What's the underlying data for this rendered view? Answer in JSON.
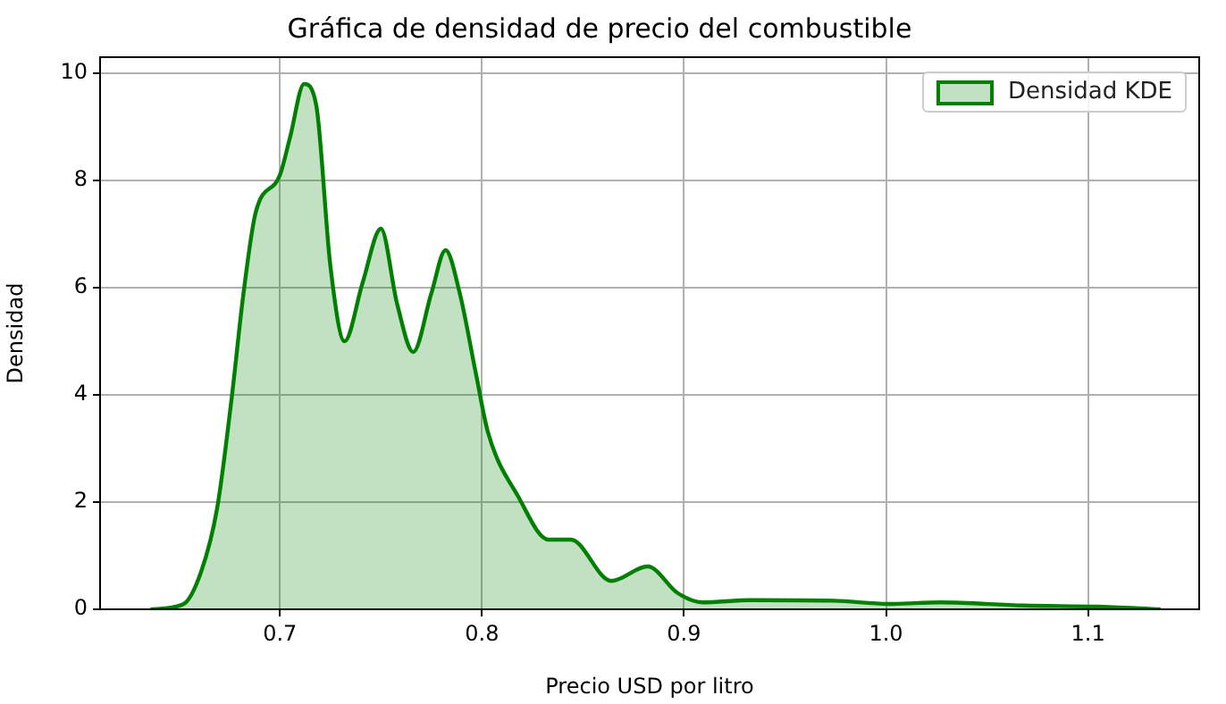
{
  "chart_data": {
    "type": "area",
    "title": "Gráfica de densidad de precio del combustible",
    "xlabel": "Precio USD por litro",
    "ylabel": "Densidad",
    "xlim": [
      0.611,
      1.155
    ],
    "xticks": [
      0.7,
      0.8,
      0.9,
      {
        "value": 1.0,
        "label": "1.0"
      },
      1.1
    ],
    "ylim": [
      0,
      10.3
    ],
    "yticks": [
      0,
      2,
      4,
      6,
      8,
      10
    ],
    "grid": true,
    "legend": "top right",
    "marker": "none",
    "line_style": "solid",
    "series": [
      {
        "name": "Densidad KDE",
        "color": "#008000",
        "x": [
          0.636,
          0.652,
          0.661,
          0.669,
          0.676,
          0.682,
          0.688,
          0.7,
          0.705,
          0.712,
          0.718,
          0.725,
          0.732,
          0.741,
          0.75,
          0.758,
          0.766,
          0.775,
          0.782,
          0.789,
          0.797,
          0.803,
          0.818,
          0.833,
          0.844,
          0.864,
          0.882,
          0.897,
          0.909,
          0.933,
          0.974,
          1.001,
          1.027,
          1.068,
          1.104,
          1.136
        ],
        "values": [
          0,
          0.09,
          0.7,
          1.9,
          3.9,
          5.9,
          7.4,
          8.1,
          8.8,
          9.8,
          9.4,
          6.4,
          5.0,
          6.1,
          7.1,
          5.7,
          4.8,
          5.9,
          6.7,
          5.9,
          4.4,
          3.3,
          2.1,
          1.3,
          1.3,
          0.53,
          0.8,
          0.3,
          0.13,
          0.17,
          0.16,
          0.1,
          0.13,
          0.07,
          0.05,
          0
        ]
      }
    ]
  }
}
